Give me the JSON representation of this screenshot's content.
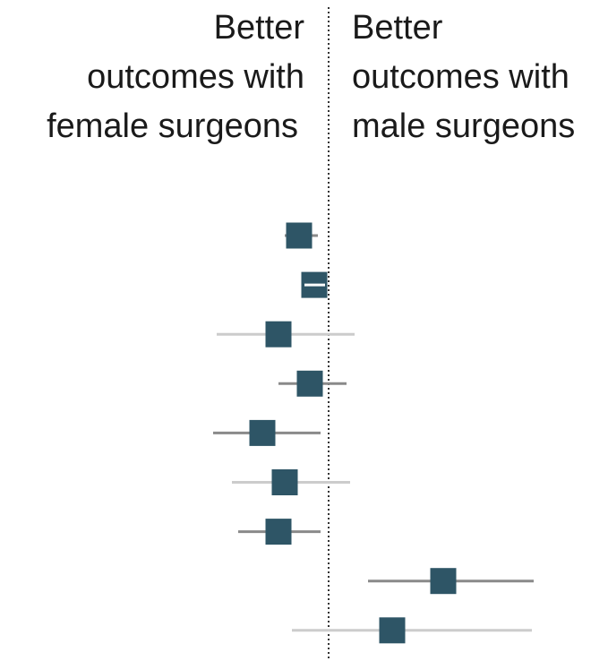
{
  "chart_data": {
    "type": "forest",
    "left_label": [
      "Better",
      "outcomes with",
      "female surgeons"
    ],
    "right_label": [
      "Better",
      "outcomes with",
      "male surgeons"
    ],
    "reference_line": 0,
    "xlim": [
      -3.67,
      3.12
    ],
    "values": [
      -0.33,
      -0.16,
      -0.56,
      -0.21,
      -0.74,
      -0.49,
      -0.56,
      1.28,
      0.71
    ],
    "ci_low": [
      -0.49,
      -0.27,
      -1.25,
      -0.56,
      -1.29,
      -1.08,
      -1.01,
      0.44,
      -0.41
    ],
    "ci_high": [
      -0.12,
      -0.04,
      0.29,
      0.2,
      -0.09,
      0.24,
      -0.09,
      2.29,
      2.27
    ],
    "ci_colors": [
      "#8a8a8a",
      "#ffffff",
      "#cccccc",
      "#8a8a8a",
      "#8a8a8a",
      "#cccccc",
      "#8a8a8a",
      "#8a8a8a",
      "#cccccc"
    ],
    "color": "#2e5566"
  }
}
